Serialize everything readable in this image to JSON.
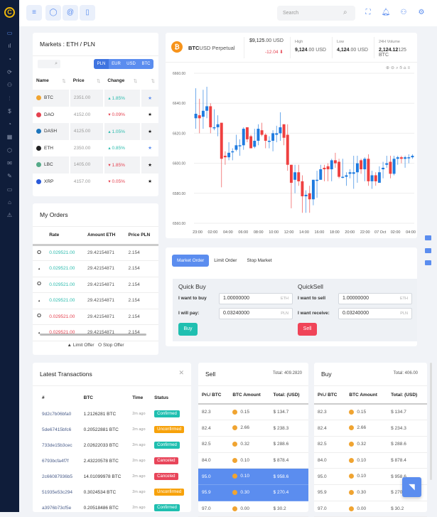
{
  "sidebar": {
    "logo": "C",
    "icons": [
      "monitor-icon",
      "bar-chart-icon",
      "pie-chart-icon",
      "refresh-icon",
      "users-icon",
      "sliders-icon",
      "dollar-icon",
      "clock-icon",
      "grid-icon",
      "box-icon",
      "inbox-icon",
      "edit-icon",
      "cast-icon",
      "lock-icon",
      "alert-icon"
    ]
  },
  "header": {
    "search_placeholder": "Search"
  },
  "markets": {
    "title": "Markets : ETH / PLN",
    "currencies": [
      "PLN",
      "EUR",
      "USD",
      "BTC"
    ],
    "active_currency": "PLN",
    "columns": [
      "Name",
      "Price",
      "Change",
      ""
    ],
    "rows": [
      {
        "name": "BTC",
        "price": "2351.00",
        "change": "1.85%",
        "dir": "up",
        "starred": true,
        "color": "#f0a431"
      },
      {
        "name": "DAO",
        "price": "4152.00",
        "change": "0.09%",
        "dir": "down",
        "starred": false,
        "color": "#e5414f"
      },
      {
        "name": "DASH",
        "price": "4125.00",
        "change": "1.05%",
        "dir": "up",
        "starred": false,
        "color": "#1c75bc"
      },
      {
        "name": "ETH",
        "price": "2350.00",
        "change": "0.85%",
        "dir": "up",
        "starred": true,
        "color": "#222"
      },
      {
        "name": "LBC",
        "price": "1405.00",
        "change": "1.85%",
        "dir": "down",
        "starred": false,
        "color": "#5a8"
      },
      {
        "name": "XRP",
        "price": "4157.00",
        "change": "0.05%",
        "dir": "down",
        "starred": false,
        "color": "#2a5ada"
      }
    ]
  },
  "orders": {
    "title": "My Orders",
    "columns": [
      "",
      "Rate",
      "Amount ETH",
      "Price PLN"
    ],
    "rows": [
      {
        "type": "stop",
        "rate": "0.029521.00",
        "amount": "29.42154871",
        "price": "2.154",
        "dir": "up"
      },
      {
        "type": "limit",
        "rate": "0.029521.00",
        "amount": "29.42154871",
        "price": "2.154",
        "dir": "up"
      },
      {
        "type": "stop",
        "rate": "0.029521.00",
        "amount": "29.42154871",
        "price": "2.154",
        "dir": "up"
      },
      {
        "type": "limit",
        "rate": "0.029521.00",
        "amount": "29.42154871",
        "price": "2.154",
        "dir": "up"
      },
      {
        "type": "stop",
        "rate": "0.029521.00",
        "amount": "29.42154871",
        "price": "2.154",
        "dir": "down"
      },
      {
        "type": "limit",
        "rate": "0.029521.00",
        "amount": "29.42154871",
        "price": "2.154",
        "dir": "down"
      }
    ],
    "legend_limit": "Limit Offer",
    "legend_stop": "Stop Offer"
  },
  "ticker": {
    "symbol_bold": "BTC",
    "symbol_rest": "USD Perpetual",
    "price_bold": "$9,125",
    "price_rest": ".00 USD",
    "change": "-12.04",
    "high_label": "High",
    "high_bold": "9,124",
    "high_rest": ".00 USD",
    "low_label": "Low",
    "low_bold": "4,124",
    "low_rest": ".00 USD",
    "vol_label": "24H Volume",
    "vol_bold": "2,124.12",
    "vol_rest": "125 BTC"
  },
  "chart_data": {
    "type": "candlestick",
    "ylim": [
      6560,
      6660
    ],
    "yticks": [
      "6560.00",
      "6580.00",
      "6600.00",
      "6620.00",
      "6640.00",
      "6660.00"
    ],
    "xticks": [
      "23:00",
      "02:00",
      "04:00",
      "06:00",
      "08:00",
      "10:00",
      "12:00",
      "14:00",
      "16:00",
      "18:00",
      "20:00",
      "22:00",
      "07 Oct",
      "02:00",
      "04:00"
    ],
    "grid": true,
    "up_color": "#1e7be0",
    "down_color": "#ef4040",
    "ohlc": [
      [
        6630,
        6650,
        6623,
        6633
      ],
      [
        6632,
        6643,
        6620,
        6630
      ],
      [
        6631,
        6649,
        6623,
        6635
      ],
      [
        6635,
        6651,
        6630,
        6638
      ],
      [
        6638,
        6640,
        6620,
        6624
      ],
      [
        6624,
        6636,
        6622,
        6624
      ],
      [
        6624,
        6632,
        6618,
        6626
      ],
      [
        6627,
        6627,
        6584,
        6603
      ],
      [
        6605,
        6608,
        6599,
        6604
      ],
      [
        6604,
        6614,
        6602,
        6607
      ],
      [
        6608,
        6610,
        6602,
        6608
      ],
      [
        6609,
        6619,
        6608,
        6612
      ],
      [
        6612,
        6616,
        6605,
        6612
      ],
      [
        6612,
        6624,
        6609,
        6623
      ],
      [
        6624,
        6624,
        6614,
        6616
      ],
      [
        6618,
        6619,
        6610,
        6610
      ],
      [
        6611,
        6623,
        6610,
        6615
      ],
      [
        6615,
        6626,
        6612,
        6623
      ],
      [
        6622,
        6627,
        6618,
        6619
      ],
      [
        6619,
        6620,
        6610,
        6615
      ],
      [
        6615,
        6618,
        6610,
        6615
      ],
      [
        6615,
        6622,
        6608,
        6620
      ],
      [
        6619,
        6625,
        6614,
        6620
      ],
      [
        6620,
        6634,
        6615,
        6624
      ],
      [
        6626,
        6626,
        6612,
        6617
      ],
      [
        6619,
        6626,
        6595,
        6599
      ],
      [
        6599,
        6599,
        6570,
        6587
      ],
      [
        6589,
        6599,
        6580,
        6594
      ],
      [
        6594,
        6599,
        6585,
        6588
      ],
      [
        6588,
        6592,
        6567,
        6578
      ],
      [
        6578,
        6582,
        6567,
        6579
      ],
      [
        6580,
        6585,
        6567,
        6576
      ],
      [
        6576,
        6589,
        6572,
        6589
      ],
      [
        6589,
        6595,
        6577,
        6589
      ],
      [
        6589,
        6599,
        6589,
        6596
      ],
      [
        6597,
        6599,
        6588,
        6596
      ],
      [
        6598,
        6600,
        6588,
        6596
      ],
      [
        6596,
        6603,
        6588,
        6602
      ],
      [
        6602,
        6607,
        6597,
        6600
      ],
      [
        6601,
        6603,
        6590,
        6591
      ],
      [
        6591,
        6603,
        6590,
        6591
      ],
      [
        6591,
        6594,
        6585,
        6592
      ],
      [
        6593,
        6596,
        6590,
        6594
      ],
      [
        6593,
        6605,
        6583,
        6594
      ],
      [
        6594,
        6605,
        6587,
        6600
      ],
      [
        6602,
        6603,
        6593,
        6596
      ],
      [
        6596,
        6604,
        6588,
        6603
      ],
      [
        6603,
        6606,
        6585,
        6588
      ],
      [
        6588,
        6595,
        6583,
        6592
      ],
      [
        6592,
        6594,
        6585,
        6588
      ],
      [
        6587,
        6598,
        6587,
        6594
      ],
      [
        6596,
        6601,
        6590,
        6597
      ],
      [
        6599,
        6605,
        6597,
        6600
      ],
      [
        6601,
        6605,
        6590,
        6593
      ],
      [
        6593,
        6605,
        6592,
        6603
      ],
      [
        6603,
        6605,
        6599,
        6604
      ],
      [
        6604,
        6605,
        6600,
        6603
      ],
      [
        6603,
        6605,
        6597,
        6604
      ],
      [
        6604,
        6606,
        6600,
        6604
      ],
      [
        6604,
        6606,
        6603,
        6605
      ]
    ]
  },
  "order_form": {
    "tabs": [
      "Market Order",
      "Limit Order",
      "Stop Market"
    ],
    "buy": {
      "title": "Quick Buy",
      "label1": "I want to buy",
      "value1": "1.00000000",
      "unit1": "ETH",
      "label2": "I will pay:",
      "value2": "0.03240000",
      "unit2": "PLN",
      "button": "Buy"
    },
    "sell": {
      "title": "QuickSell",
      "label1": "I want to sell",
      "value1": "1.00000000",
      "unit1": "ETH",
      "label2": "I want receive:",
      "value2": "0.03240000",
      "unit2": "PLN",
      "button": "Sell"
    }
  },
  "transactions": {
    "title": "Latest Transactions",
    "columns": [
      "#",
      "BTC",
      "Time",
      "Status"
    ],
    "rows": [
      {
        "id": "9d2c7b06bfa0",
        "btc": "1.2126281 BTC",
        "time": "2m ago",
        "status": "Confirmed"
      },
      {
        "id": "5de67415bfc6",
        "btc": "0.20522881 BTC",
        "time": "2m ago",
        "status": "Unconfirmed"
      },
      {
        "id": "733de15b3cec",
        "btc": "2.02622033 BTC",
        "time": "2m ago",
        "status": "Confirmed"
      },
      {
        "id": "6793bcfa4f7f",
        "btc": "2.43220578 BTC",
        "time": "2m ago",
        "status": "Canceled"
      },
      {
        "id": "2c66087936b5",
        "btc": "14.01099978 BTC",
        "time": "2m ago",
        "status": "Canceled"
      },
      {
        "id": "51935e53c294",
        "btc": "0.3024534 BTC",
        "time": "2m ago",
        "status": "Unconfirmed"
      },
      {
        "id": "a3976b73cf5e",
        "btc": "0.20518486 BTC",
        "time": "2m ago",
        "status": "Confirmed"
      }
    ]
  },
  "status_colors": {
    "Confirmed": "#1fbfb0",
    "Unconfirmed": "#f7a20b",
    "Canceled": "#e8455a"
  },
  "sell": {
    "title": "Sell",
    "total": "Total: 409.2820",
    "columns": [
      "Pri./ BTC",
      "BTC Amount",
      "Total: (USD)"
    ],
    "rows": [
      [
        "82.3",
        "0.15",
        "$ 134.7"
      ],
      [
        "82.4",
        "2.66",
        "$ 238.3"
      ],
      [
        "82.5",
        "0.32",
        "$ 288.6"
      ],
      [
        "84.0",
        "0.10",
        "$ 878.4"
      ],
      [
        "95.0",
        "0.10",
        "$ 958.6"
      ],
      [
        "95.9",
        "0.30",
        "$ 270.4"
      ],
      [
        "97.0",
        "0.00",
        "$ 30.2"
      ]
    ],
    "highlighted": [
      4,
      5
    ]
  },
  "buy": {
    "title": "Buy",
    "total": "Total: 406.00",
    "columns": [
      "Pri./ BTC",
      "BTC Amount",
      "Total: (USD)"
    ],
    "rows": [
      [
        "82.3",
        "0.15",
        "$ 134.7"
      ],
      [
        "82.4",
        "2.66",
        "$ 234.3"
      ],
      [
        "82.5",
        "0.32",
        "$ 288.6"
      ],
      [
        "84.0",
        "0.10",
        "$ 878.4"
      ],
      [
        "95.0",
        "0.10",
        "$ 958.6"
      ],
      [
        "95.9",
        "0.30",
        "$ 270.4"
      ],
      [
        "97.0",
        "0.00",
        "$ 30.2"
      ]
    ]
  }
}
